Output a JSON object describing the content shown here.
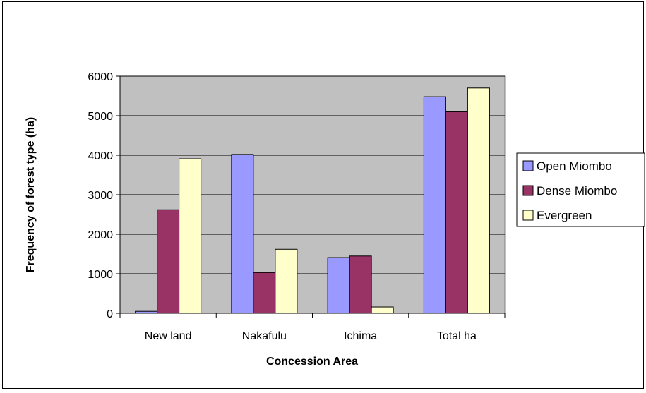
{
  "chart_data": {
    "type": "bar",
    "title": "",
    "xlabel": "Concession Area",
    "ylabel": "Frequency of forest type  (ha)",
    "categories": [
      "New land",
      "Nakafulu",
      "Ichima",
      "Total ha"
    ],
    "series": [
      {
        "name": "Open  Miombo",
        "color": "#9999ff",
        "values": [
          50,
          4020,
          1410,
          5480
        ]
      },
      {
        "name": "Dense Miombo",
        "color": "#993366",
        "values": [
          2620,
          1030,
          1450,
          5100
        ]
      },
      {
        "name": "Evergreen",
        "color": "#ffffcc",
        "values": [
          3910,
          1620,
          160,
          5700
        ]
      }
    ],
    "ylim": [
      0,
      6000
    ],
    "yticks": [
      "0",
      "1000",
      "2000",
      "3000",
      "4000",
      "5000",
      "6000"
    ],
    "ytick_values": [
      0,
      1000,
      2000,
      3000,
      4000,
      5000,
      6000
    ],
    "grid": true,
    "plot_background": "#c0c0c0",
    "legend_position": "right"
  }
}
